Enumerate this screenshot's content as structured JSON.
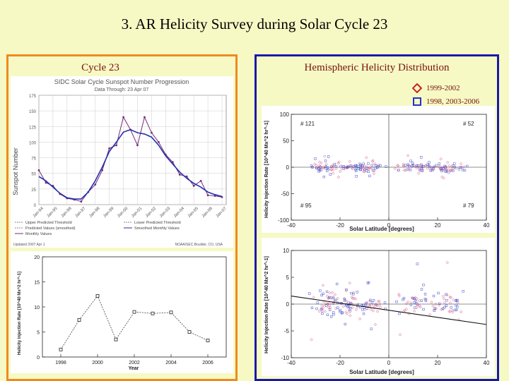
{
  "slide": {
    "title": "3. AR Helicity Survey during Solar Cycle 23"
  },
  "left_panel": {
    "title": "Cycle 23",
    "border_color": "#f08a1e"
  },
  "right_panel": {
    "title": "Hemispheric Helicity Distribution",
    "border_color": "#1a1aa8",
    "legend": [
      {
        "label": "1999-2002",
        "marker": "diamond",
        "color": "#cc2222"
      },
      {
        "label": "1998, 2003-2006",
        "marker": "square",
        "color": "#2233cc"
      }
    ]
  },
  "chart_data": [
    {
      "type": "line",
      "title": "SIDC Solar Cycle Sunspot Number Progression",
      "subtitle": "Data Through: 23 Apr 07",
      "ylabel": "Sunspot Number",
      "ylim": [
        0,
        175
      ],
      "yticks": [
        0,
        25,
        50,
        75,
        100,
        125,
        150,
        175
      ],
      "xticks": [
        "Jan-94",
        "Jan-95",
        "Jan-96",
        "Jan-97",
        "Jan-98",
        "Jan-99",
        "Jan-00",
        "Jan-01",
        "Jan-02",
        "Jan-03",
        "Jan-04",
        "Jan-05",
        "Jan-06",
        "Jan-07"
      ],
      "legend": [
        "Upper Predicted Threshold",
        "Lower Predicted Threshold",
        "Predicted Values (smoothed)",
        "Smoothed Monthly Values",
        "Monthly Values"
      ],
      "footer": "Updated 2007 Apr 1",
      "footer_right": "NOAA/SEC Boulder, CO, USA",
      "x": [
        1994.0,
        1994.5,
        1995.0,
        1995.5,
        1996.0,
        1996.5,
        1997.0,
        1997.5,
        1998.0,
        1998.5,
        1999.0,
        1999.5,
        2000.0,
        2000.5,
        2001.0,
        2001.5,
        2002.0,
        2002.5,
        2003.0,
        2003.5,
        2004.0,
        2004.5,
        2005.0,
        2005.5,
        2006.0,
        2006.5,
        2007.0
      ],
      "series": [
        {
          "name": "Monthly Values",
          "values": [
            55,
            35,
            30,
            17,
            10,
            8,
            5,
            20,
            32,
            55,
            90,
            95,
            140,
            120,
            95,
            140,
            115,
            100,
            80,
            68,
            48,
            45,
            30,
            38,
            15,
            14,
            12
          ]
        },
        {
          "name": "Smoothed Monthly Values",
          "values": [
            45,
            38,
            28,
            18,
            11,
            9,
            9,
            20,
            38,
            60,
            85,
            100,
            116,
            120,
            115,
            113,
            108,
            95,
            78,
            65,
            52,
            42,
            34,
            28,
            20,
            16,
            13
          ]
        }
      ]
    },
    {
      "type": "scatter",
      "xlabel": "Year",
      "ylabel": "Helicity Injection Rate [10^40 Mx^2 hr^-1]",
      "xlim": [
        1997,
        2007
      ],
      "ylim": [
        0,
        20
      ],
      "xtick_labels": [
        "1998",
        "2000",
        "2002",
        "2004",
        "2006"
      ],
      "ytick_labels": [
        "0",
        "5",
        "10",
        "15",
        "20"
      ],
      "x": [
        1998,
        1999,
        2000,
        2001,
        2002,
        2003,
        2004,
        2005,
        2006
      ],
      "values": [
        1.5,
        7.4,
        12.2,
        3.5,
        9.0,
        8.7,
        8.9,
        5.0,
        3.3
      ]
    },
    {
      "type": "scatter",
      "xlabel": "Solar Latitude [degrees]",
      "ylabel": "Helicity Injection Rate [10^40 Mx^2 hr^-1]",
      "xlim": [
        -40,
        40
      ],
      "ylim": [
        -100,
        100
      ],
      "xtick_labels": [
        "-40",
        "-20",
        "0",
        "20",
        "40"
      ],
      "ytick_labels": [
        "-100",
        "-50",
        "0",
        "50",
        "100"
      ],
      "annotations": [
        "# 121",
        "# 52",
        "# 95",
        "# 79"
      ]
    },
    {
      "type": "scatter",
      "xlabel": "Solar Latitude [degrees]",
      "ylabel": "Helicity Injection Rate [10^40 Mx^2 hr^-1]",
      "xlim": [
        -40,
        40
      ],
      "ylim": [
        -10,
        10
      ],
      "xtick_labels": [
        "-40",
        "-20",
        "0",
        "20",
        "40"
      ],
      "ytick_labels": [
        "-10",
        "-5",
        "0",
        "5",
        "10"
      ],
      "fit_line": {
        "x": [
          -40,
          40
        ],
        "y": [
          1.5,
          -3.8
        ]
      }
    }
  ]
}
